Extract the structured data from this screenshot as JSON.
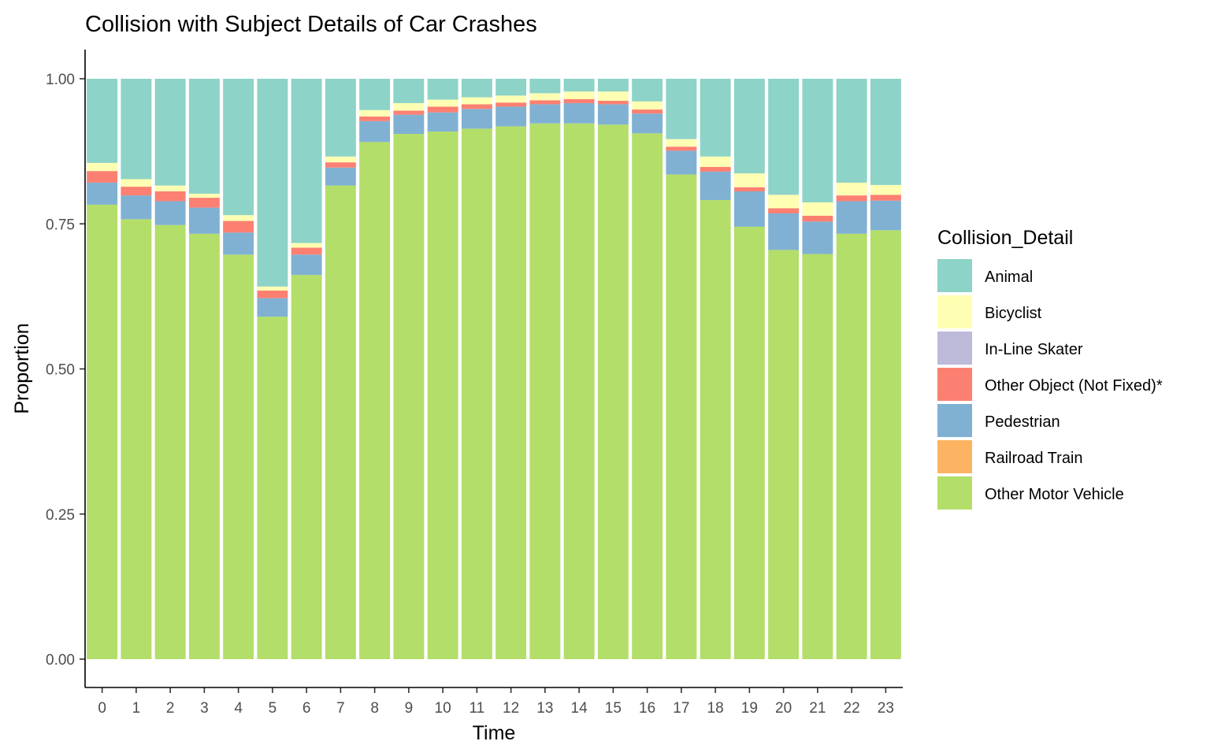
{
  "chart_data": {
    "type": "bar",
    "stacked": true,
    "title": "Collision with Subject Details of Car Crashes",
    "xlabel": "Time",
    "ylabel": "Proportion",
    "categories": [
      "0",
      "1",
      "2",
      "3",
      "4",
      "5",
      "6",
      "7",
      "8",
      "9",
      "10",
      "11",
      "12",
      "13",
      "14",
      "15",
      "16",
      "17",
      "18",
      "19",
      "20",
      "21",
      "22",
      "23"
    ],
    "ylim": [
      0,
      1
    ],
    "yticks": [
      0,
      0.25,
      0.5,
      0.75,
      1
    ],
    "ytick_labels": [
      "0.00",
      "0.25",
      "0.50",
      "0.75",
      "1.00"
    ],
    "legend_title": "Collision_Detail",
    "legend_position": "right",
    "grid": false,
    "series": [
      {
        "name": "Animal",
        "color": "#8DD3C7",
        "values": [
          0.145,
          0.173,
          0.184,
          0.198,
          0.235,
          0.358,
          0.283,
          0.134,
          0.054,
          0.042,
          0.036,
          0.032,
          0.029,
          0.025,
          0.022,
          0.022,
          0.039,
          0.104,
          0.134,
          0.163,
          0.2,
          0.213,
          0.179,
          0.183
        ]
      },
      {
        "name": "Bicyclist",
        "color": "#FFFFB3",
        "values": [
          0.014,
          0.013,
          0.01,
          0.007,
          0.01,
          0.007,
          0.008,
          0.01,
          0.011,
          0.013,
          0.012,
          0.012,
          0.012,
          0.012,
          0.013,
          0.016,
          0.014,
          0.013,
          0.018,
          0.024,
          0.023,
          0.023,
          0.022,
          0.017
        ]
      },
      {
        "name": "In-Line Skater",
        "color": "#BEBADA",
        "values": [
          0,
          0,
          0,
          0,
          0,
          0,
          0,
          0,
          0,
          0,
          0,
          0,
          0,
          0,
          0,
          0,
          0,
          0,
          0,
          0,
          0,
          0,
          0,
          0
        ]
      },
      {
        "name": "Other Object (Not Fixed)*",
        "color": "#FB8072",
        "values": [
          0.02,
          0.015,
          0.017,
          0.017,
          0.02,
          0.013,
          0.012,
          0.009,
          0.008,
          0.007,
          0.01,
          0.008,
          0.007,
          0.007,
          0.007,
          0.006,
          0.007,
          0.007,
          0.008,
          0.007,
          0.009,
          0.01,
          0.01,
          0.01
        ]
      },
      {
        "name": "Pedestrian",
        "color": "#80B1D3",
        "values": [
          0.038,
          0.041,
          0.041,
          0.045,
          0.038,
          0.032,
          0.035,
          0.031,
          0.036,
          0.033,
          0.033,
          0.034,
          0.034,
          0.033,
          0.035,
          0.035,
          0.034,
          0.041,
          0.049,
          0.061,
          0.063,
          0.056,
          0.056,
          0.051
        ]
      },
      {
        "name": "Railroad Train",
        "color": "#FDB462",
        "values": [
          0,
          0,
          0,
          0,
          0,
          0,
          0,
          0,
          0,
          0,
          0,
          0,
          0,
          0,
          0,
          0,
          0,
          0,
          0,
          0,
          0,
          0,
          0,
          0
        ]
      },
      {
        "name": "Other Motor Vehicle",
        "color": "#B3DE69",
        "values": [
          0.783,
          0.758,
          0.748,
          0.733,
          0.697,
          0.59,
          0.662,
          0.816,
          0.891,
          0.905,
          0.909,
          0.914,
          0.918,
          0.923,
          0.923,
          0.921,
          0.906,
          0.835,
          0.791,
          0.745,
          0.705,
          0.698,
          0.733,
          0.739
        ]
      }
    ]
  }
}
